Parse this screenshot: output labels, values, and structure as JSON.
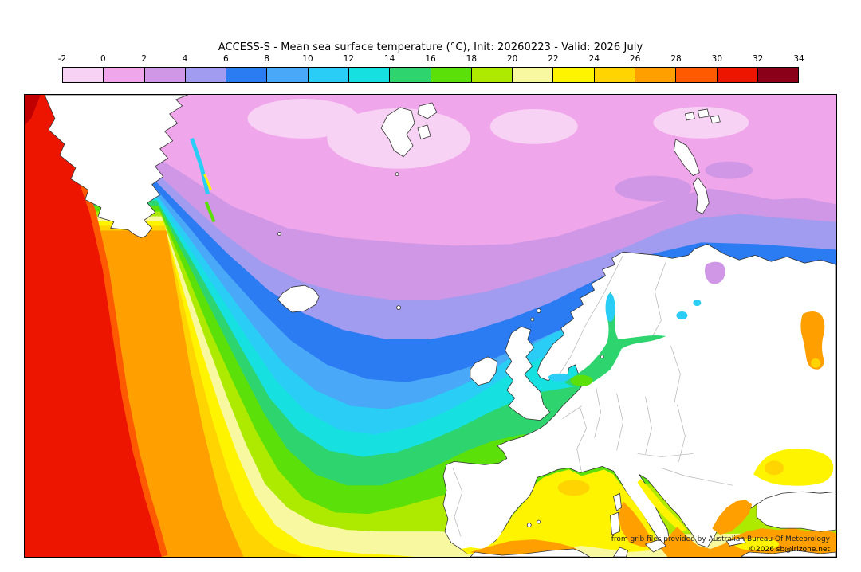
{
  "header": {
    "title": "ACCESS-S - Mean sea surface temperature (°C), Init: 20260223 - Valid: 2026 July"
  },
  "colorbar": {
    "unit": "°C",
    "ticks": [
      "-2",
      "0",
      "2",
      "4",
      "6",
      "8",
      "10",
      "12",
      "14",
      "16",
      "18",
      "20",
      "22",
      "24",
      "26",
      "28",
      "30",
      "32",
      "34"
    ],
    "colors": [
      "#f8d2f4",
      "#f0a6ea",
      "#cf97e5",
      "#a29cf0",
      "#2b7bf2",
      "#49a8f7",
      "#2acdf5",
      "#16e0e0",
      "#2ed46e",
      "#5be00a",
      "#aeea00",
      "#f8f8a0",
      "#fff400",
      "#ffd400",
      "#ffa000",
      "#ff5a00",
      "#ee1500",
      "#8b0018"
    ]
  },
  "map": {
    "attribution": "from grib files provided by Australian Bureau Of Meteorology",
    "copyright": "©2026 sb@irizone.net"
  },
  "chart_data": {
    "type": "heatmap",
    "title": "ACCESS-S - Mean sea surface temperature (°C), Init: 20260223 - Valid: 2026 July",
    "variable": "sea surface temperature",
    "units": "°C",
    "colorbar_ticks": [
      -2,
      0,
      2,
      4,
      6,
      8,
      10,
      12,
      14,
      16,
      18,
      20,
      22,
      24,
      26,
      28,
      30,
      32,
      34
    ],
    "legend_position": "top",
    "region": "North Atlantic / Europe"
  }
}
